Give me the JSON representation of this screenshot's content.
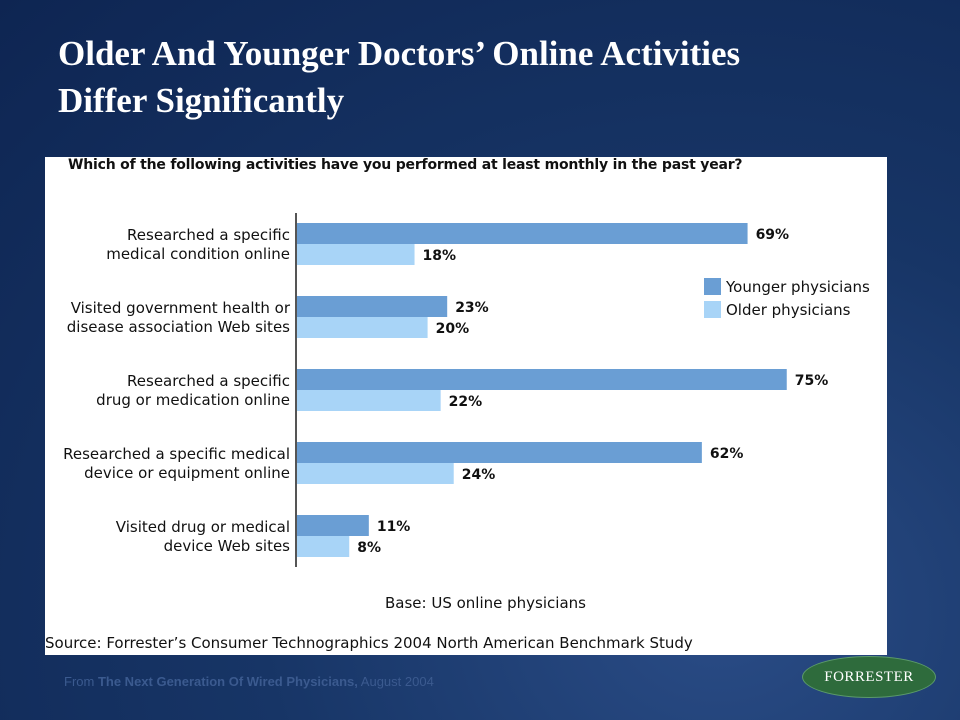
{
  "slide": {
    "title_line1": "Older And Younger Doctors’ Online Activities",
    "title_line2": "Differ Significantly"
  },
  "footer": {
    "prefix": "From ",
    "report": "The Next Generation Of Wired Physicians,",
    "date": " August 2004"
  },
  "logo": {
    "text": "FORRESTER"
  },
  "colors": {
    "younger": "#6a9ed4",
    "older": "#a8d4f7",
    "background": "#173566"
  },
  "chart_data": {
    "type": "bar",
    "orientation": "horizontal",
    "title": "Which of the following activities have you performed at least monthly in the past year?",
    "categories": [
      [
        "Researched a specific",
        "medical condition online"
      ],
      [
        "Visited government health or",
        "disease association Web sites"
      ],
      [
        "Researched a specific",
        "drug or medication online"
      ],
      [
        "Researched a specific medical",
        "device or equipment online"
      ],
      [
        "Visited drug or medical",
        "device Web sites"
      ]
    ],
    "series": [
      {
        "name": "Younger physicians",
        "values": [
          69,
          23,
          75,
          62,
          11
        ],
        "color": "#6a9ed4"
      },
      {
        "name": "Older physicians",
        "values": [
          18,
          20,
          22,
          24,
          8
        ],
        "color": "#a8d4f7"
      }
    ],
    "value_suffix": "%",
    "xlim": [
      0,
      100
    ],
    "legend_position": "right",
    "grid": false,
    "base_note": "Base: US online physicians",
    "source": "Source: Forrester’s Consumer Technographics 2004 North American Benchmark Study"
  }
}
